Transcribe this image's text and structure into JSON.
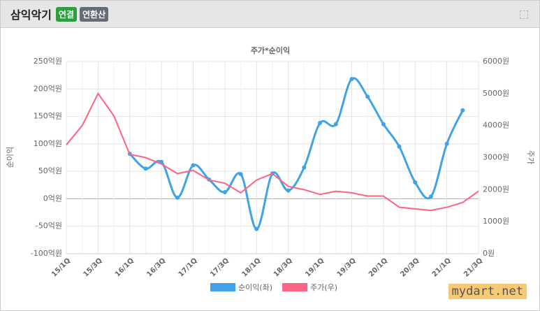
{
  "header": {
    "title": "삼익악기",
    "badges": [
      "연결",
      "연환산"
    ]
  },
  "watermark": "mydart.net",
  "chart_data": {
    "type": "line",
    "title": "주가*순이익",
    "y_label": "순이익",
    "y2_label": "주가",
    "categories": [
      "15/1Q",
      null,
      "15/3Q",
      null,
      "16/1Q",
      null,
      "16/3Q",
      null,
      "17/1Q",
      null,
      "17/3Q",
      null,
      "18/1Q",
      null,
      "18/3Q",
      null,
      "19/1Q",
      null,
      "19/3Q",
      null,
      "20/1Q",
      null,
      "20/3Q",
      null,
      "21/1Q",
      null,
      "21/3Q"
    ],
    "ylim": [
      -100,
      250
    ],
    "yticks": [
      {
        "value": -100,
        "label": "-100억원"
      },
      {
        "value": -50,
        "label": "-50억원"
      },
      {
        "value": 0,
        "label": "0억원"
      },
      {
        "value": 50,
        "label": "50억원"
      },
      {
        "value": 100,
        "label": "100억원"
      },
      {
        "value": 150,
        "label": "150억원"
      },
      {
        "value": 200,
        "label": "200억원"
      },
      {
        "value": 250,
        "label": "250억원"
      }
    ],
    "y2lim": [
      0,
      6000
    ],
    "y2ticks": [
      {
        "value": 0,
        "label": "0원"
      },
      {
        "value": 1000,
        "label": "1000원"
      },
      {
        "value": 2000,
        "label": "2000원"
      },
      {
        "value": 3000,
        "label": "3000원"
      },
      {
        "value": 4000,
        "label": "4000원"
      },
      {
        "value": 5000,
        "label": "5000원"
      },
      {
        "value": 6000,
        "label": "6000원"
      }
    ],
    "grid": true,
    "series": [
      {
        "name": "순이익(좌)",
        "color": "#3ea3e8",
        "smooth": true,
        "markers": true,
        "values": [
          null,
          null,
          null,
          null,
          82,
          55,
          67,
          2,
          61,
          35,
          12,
          45,
          -55,
          46,
          15,
          57,
          138,
          136,
          218,
          186,
          136,
          95,
          30,
          4,
          100,
          161,
          null
        ]
      },
      {
        "name": "주가(우)",
        "color": "#ff6384",
        "axis": "y2",
        "smooth": false,
        "markers": false,
        "values": [
          3400,
          4000,
          5000,
          4300,
          3100,
          3000,
          2800,
          2500,
          2600,
          2300,
          2200,
          1900,
          2300,
          2500,
          2100,
          2000,
          1850,
          1950,
          1900,
          1800,
          1800,
          1450,
          1400,
          1350,
          1450,
          1600,
          1950
        ]
      }
    ]
  }
}
